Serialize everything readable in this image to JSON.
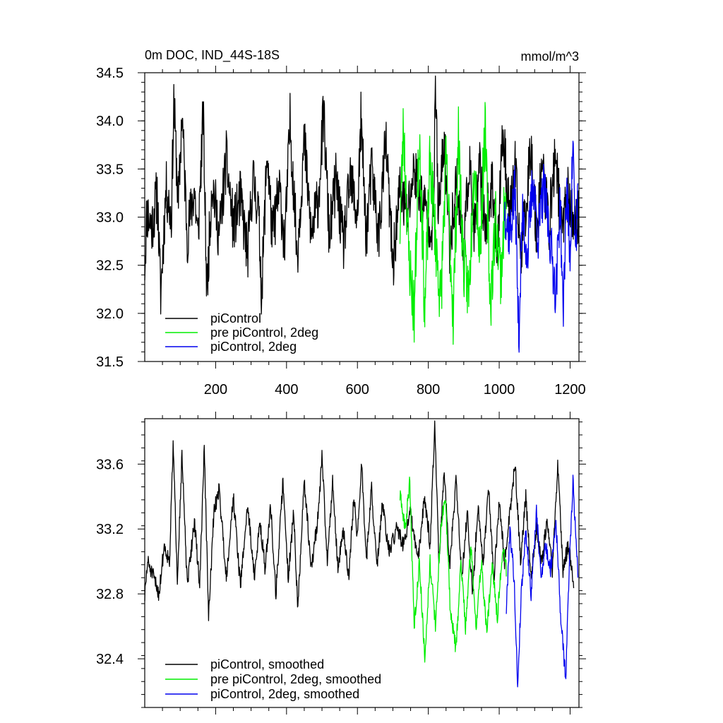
{
  "chart_data": [
    {
      "type": "line",
      "title": "0m DOC, IND_44S-18S",
      "units": "mmol/m^3",
      "xlabel": "",
      "ylabel": "",
      "xlim": [
        0,
        1225
      ],
      "ylim": [
        31.5,
        34.5
      ],
      "xticks": [
        200,
        400,
        600,
        800,
        1000,
        1200
      ],
      "yticks": [
        31.5,
        32.0,
        32.5,
        33.0,
        33.5,
        34.0,
        34.5
      ],
      "ytick_labels": [
        "31.5",
        "32.0",
        "32.5",
        "33.0",
        "33.5",
        "34.0",
        "34.5"
      ],
      "grid": false,
      "legend": "bottom-left",
      "series": [
        {
          "name": "piControl",
          "color": "#000000",
          "x_start": 0,
          "x_end": 1225,
          "anchors": [
            [
              0,
              32.5
            ],
            [
              6,
              33.05
            ],
            [
              20,
              32.9
            ],
            [
              35,
              33.25
            ],
            [
              45,
              32.2
            ],
            [
              60,
              33.3
            ],
            [
              75,
              33.0
            ],
            [
              82,
              34.2
            ],
            [
              95,
              33.1
            ],
            [
              105,
              34.1
            ],
            [
              120,
              32.8
            ],
            [
              140,
              33.3
            ],
            [
              150,
              32.75
            ],
            [
              165,
              34.1
            ],
            [
              175,
              32.2
            ],
            [
              190,
              33.4
            ],
            [
              210,
              32.8
            ],
            [
              230,
              33.6
            ],
            [
              250,
              32.9
            ],
            [
              270,
              33.2
            ],
            [
              290,
              32.6
            ],
            [
              305,
              33.4
            ],
            [
              320,
              33.1
            ],
            [
              330,
              32.2
            ],
            [
              345,
              33.7
            ],
            [
              360,
              32.8
            ],
            [
              380,
              33.3
            ],
            [
              395,
              32.7
            ],
            [
              410,
              34.0
            ],
            [
              430,
              32.6
            ],
            [
              450,
              33.8
            ],
            [
              470,
              32.8
            ],
            [
              490,
              33.2
            ],
            [
              505,
              34.1
            ],
            [
              520,
              32.8
            ],
            [
              540,
              33.4
            ],
            [
              560,
              32.7
            ],
            [
              580,
              33.4
            ],
            [
              600,
              33.0
            ],
            [
              610,
              34.0
            ],
            [
              625,
              32.8
            ],
            [
              640,
              33.5
            ],
            [
              660,
              32.8
            ],
            [
              680,
              33.8
            ],
            [
              700,
              32.5
            ],
            [
              720,
              33.3
            ],
            [
              740,
              33.0
            ],
            [
              760,
              33.5
            ],
            [
              780,
              33.2
            ],
            [
              800,
              33.0
            ],
            [
              815,
              32.9
            ],
            [
              820,
              34.5
            ],
            [
              828,
              33.0
            ],
            [
              845,
              33.8
            ],
            [
              860,
              32.7
            ],
            [
              880,
              33.4
            ],
            [
              900,
              32.6
            ],
            [
              915,
              33.6
            ],
            [
              930,
              32.8
            ],
            [
              945,
              33.5
            ],
            [
              960,
              32.9
            ],
            [
              980,
              33.3
            ],
            [
              995,
              32.7
            ],
            [
              1010,
              33.9
            ],
            [
              1030,
              33.0
            ],
            [
              1045,
              33.5
            ],
            [
              1060,
              32.6
            ],
            [
              1075,
              33.1
            ],
            [
              1090,
              33.8
            ],
            [
              1105,
              32.8
            ],
            [
              1120,
              33.6
            ],
            [
              1140,
              32.9
            ],
            [
              1160,
              33.7
            ],
            [
              1175,
              32.8
            ],
            [
              1190,
              33.3
            ],
            [
              1205,
              33.0
            ],
            [
              1215,
              32.9
            ],
            [
              1225,
              33.0
            ]
          ],
          "noise_amp": 0.3,
          "seed": 11
        },
        {
          "name": "pre piControl, 2deg",
          "color": "#00ee00",
          "x_start": 720,
          "x_end": 1020,
          "anchors": [
            [
              720,
              32.9
            ],
            [
              730,
              33.95
            ],
            [
              745,
              32.6
            ],
            [
              760,
              32.0
            ],
            [
              775,
              33.9
            ],
            [
              790,
              32.0
            ],
            [
              805,
              33.6
            ],
            [
              820,
              32.8
            ],
            [
              835,
              32.1
            ],
            [
              850,
              33.6
            ],
            [
              870,
              32.0
            ],
            [
              885,
              33.8
            ],
            [
              900,
              32.5
            ],
            [
              915,
              32.2
            ],
            [
              930,
              33.7
            ],
            [
              945,
              32.6
            ],
            [
              960,
              33.9
            ],
            [
              975,
              32.1
            ],
            [
              990,
              33.0
            ],
            [
              1005,
              32.4
            ],
            [
              1015,
              33.1
            ],
            [
              1020,
              33.0
            ]
          ],
          "noise_amp": 0.35,
          "seed": 23
        },
        {
          "name": "piControl, 2deg",
          "color": "#0000ee",
          "x_start": 1015,
          "x_end": 1222,
          "anchors": [
            [
              1015,
              33.1
            ],
            [
              1030,
              32.8
            ],
            [
              1045,
              33.3
            ],
            [
              1055,
              31.75
            ],
            [
              1065,
              33.0
            ],
            [
              1080,
              32.6
            ],
            [
              1095,
              33.4
            ],
            [
              1110,
              32.8
            ],
            [
              1125,
              33.3
            ],
            [
              1140,
              32.9
            ],
            [
              1160,
              32.2
            ],
            [
              1172,
              33.2
            ],
            [
              1180,
              31.95
            ],
            [
              1190,
              33.3
            ],
            [
              1200,
              32.6
            ],
            [
              1208,
              33.85
            ],
            [
              1215,
              32.6
            ],
            [
              1222,
              33.3
            ]
          ],
          "noise_amp": 0.28,
          "seed": 37
        }
      ]
    },
    {
      "type": "line",
      "title": "",
      "xlabel": "",
      "ylabel": "",
      "xlim": [
        0,
        1225
      ],
      "ylim": [
        32.1,
        33.88
      ],
      "xticks": [
        200,
        400,
        600,
        800,
        1000,
        1200
      ],
      "yticks": [
        32.4,
        32.8,
        33.2,
        33.6
      ],
      "ytick_labels": [
        "32.4",
        "32.8",
        "33.2",
        "33.6"
      ],
      "grid": false,
      "legend": "bottom-left",
      "series": [
        {
          "name": "piControl, smoothed",
          "color": "#000000",
          "x_start": 0,
          "x_end": 1210,
          "anchors": [
            [
              0,
              32.78
            ],
            [
              8,
              33.0
            ],
            [
              25,
              32.9
            ],
            [
              40,
              32.8
            ],
            [
              55,
              33.1
            ],
            [
              70,
              33.0
            ],
            [
              80,
              33.72
            ],
            [
              92,
              32.9
            ],
            [
              105,
              33.65
            ],
            [
              120,
              32.85
            ],
            [
              140,
              33.25
            ],
            [
              155,
              32.85
            ],
            [
              168,
              33.7
            ],
            [
              180,
              32.65
            ],
            [
              195,
              33.3
            ],
            [
              210,
              33.45
            ],
            [
              230,
              32.9
            ],
            [
              250,
              33.4
            ],
            [
              270,
              32.85
            ],
            [
              290,
              33.35
            ],
            [
              310,
              32.9
            ],
            [
              325,
              33.25
            ],
            [
              340,
              32.95
            ],
            [
              355,
              33.35
            ],
            [
              370,
              32.8
            ],
            [
              390,
              33.5
            ],
            [
              405,
              32.9
            ],
            [
              420,
              33.3
            ],
            [
              432,
              32.7
            ],
            [
              450,
              33.5
            ],
            [
              470,
              32.95
            ],
            [
              490,
              33.3
            ],
            [
              500,
              33.65
            ],
            [
              515,
              33.0
            ],
            [
              530,
              33.5
            ],
            [
              545,
              32.95
            ],
            [
              560,
              33.2
            ],
            [
              575,
              32.9
            ],
            [
              590,
              33.4
            ],
            [
              600,
              33.15
            ],
            [
              612,
              33.6
            ],
            [
              625,
              33.0
            ],
            [
              640,
              33.45
            ],
            [
              655,
              32.95
            ],
            [
              670,
              33.35
            ],
            [
              690,
              33.05
            ],
            [
              710,
              33.2
            ],
            [
              730,
              33.1
            ],
            [
              750,
              33.3
            ],
            [
              770,
              33.0
            ],
            [
              790,
              33.4
            ],
            [
              805,
              33.1
            ],
            [
              818,
              33.84
            ],
            [
              830,
              33.0
            ],
            [
              845,
              33.55
            ],
            [
              860,
              32.95
            ],
            [
              878,
              33.5
            ],
            [
              895,
              32.9
            ],
            [
              910,
              33.3
            ],
            [
              925,
              32.8
            ],
            [
              940,
              33.35
            ],
            [
              955,
              33.0
            ],
            [
              970,
              33.45
            ],
            [
              985,
              32.9
            ],
            [
              1000,
              33.35
            ],
            [
              1015,
              33.0
            ],
            [
              1030,
              33.3
            ],
            [
              1045,
              33.6
            ],
            [
              1060,
              33.0
            ],
            [
              1075,
              33.4
            ],
            [
              1090,
              32.9
            ],
            [
              1105,
              33.2
            ],
            [
              1120,
              33.0
            ],
            [
              1135,
              33.25
            ],
            [
              1150,
              32.95
            ],
            [
              1165,
              33.6
            ],
            [
              1180,
              32.95
            ],
            [
              1195,
              33.1
            ],
            [
              1210,
              32.87
            ]
          ],
          "noise_amp": 0.05,
          "seed": 51
        },
        {
          "name": "pre piControl, 2deg, smoothed",
          "color": "#00ee00",
          "x_start": 720,
          "x_end": 1020,
          "anchors": [
            [
              720,
              33.4
            ],
            [
              735,
              33.2
            ],
            [
              748,
              33.5
            ],
            [
              760,
              32.6
            ],
            [
              775,
              33.0
            ],
            [
              790,
              32.4
            ],
            [
              805,
              33.0
            ],
            [
              820,
              32.6
            ],
            [
              835,
              33.2
            ],
            [
              848,
              33.4
            ],
            [
              862,
              32.7
            ],
            [
              878,
              32.45
            ],
            [
              892,
              33.0
            ],
            [
              905,
              32.6
            ],
            [
              920,
              33.1
            ],
            [
              935,
              32.6
            ],
            [
              950,
              33.0
            ],
            [
              965,
              32.55
            ],
            [
              980,
              33.0
            ],
            [
              995,
              32.65
            ],
            [
              1010,
              33.1
            ],
            [
              1020,
              32.95
            ]
          ],
          "noise_amp": 0.05,
          "seed": 63
        },
        {
          "name": "piControl, 2deg, smoothed",
          "color": "#0000ee",
          "x_start": 1020,
          "x_end": 1222,
          "anchors": [
            [
              1020,
              32.7
            ],
            [
              1030,
              33.2
            ],
            [
              1042,
              32.9
            ],
            [
              1052,
              32.23
            ],
            [
              1062,
              32.8
            ],
            [
              1075,
              33.2
            ],
            [
              1090,
              32.8
            ],
            [
              1105,
              33.3
            ],
            [
              1118,
              32.9
            ],
            [
              1130,
              33.1
            ],
            [
              1145,
              32.95
            ],
            [
              1160,
              33.25
            ],
            [
              1175,
              32.6
            ],
            [
              1188,
              32.28
            ],
            [
              1198,
              33.0
            ],
            [
              1208,
              33.5
            ],
            [
              1215,
              33.2
            ],
            [
              1222,
              32.95
            ]
          ],
          "noise_amp": 0.05,
          "seed": 79
        }
      ]
    }
  ]
}
